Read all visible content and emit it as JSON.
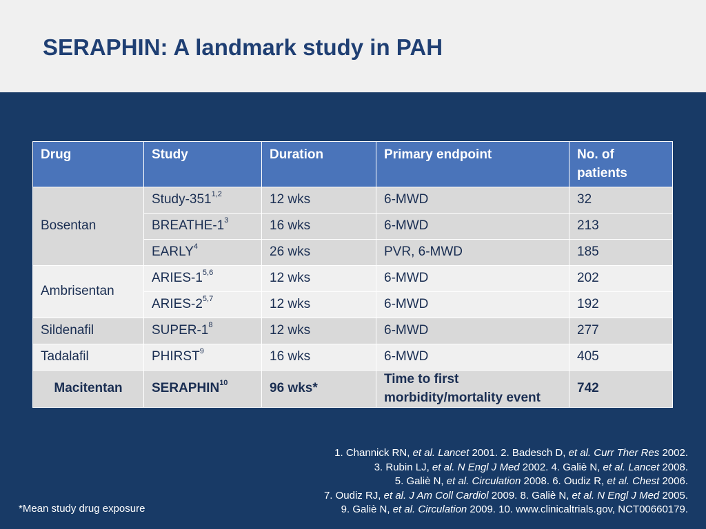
{
  "title": "SERAPHIN: A landmark study in PAH",
  "table": {
    "headers": [
      "Drug",
      "Study",
      "Duration",
      "Primary endpoint",
      "No. of patients"
    ],
    "groups": [
      {
        "drug": "Bosentan",
        "rows": [
          {
            "study": "Study-351",
            "refs": "1,2",
            "duration": "12 wks",
            "endpoint": "6-MWD",
            "patients": "32"
          },
          {
            "study": "BREATHE-1",
            "refs": "3",
            "duration": "16 wks",
            "endpoint": "6-MWD",
            "patients": "213"
          },
          {
            "study": "EARLY",
            "refs": "4",
            "duration": "26 wks",
            "endpoint": "PVR, 6-MWD",
            "patients": "185"
          }
        ]
      },
      {
        "drug": "Ambrisentan",
        "rows": [
          {
            "study": "ARIES-1",
            "refs": "5,6",
            "duration": "12 wks",
            "endpoint": "6-MWD",
            "patients": "202"
          },
          {
            "study": "ARIES-2",
            "refs": "5,7",
            "duration": "12 wks",
            "endpoint": "6-MWD",
            "patients": "192"
          }
        ]
      },
      {
        "drug": "Sildenafil",
        "rows": [
          {
            "study": "SUPER-1",
            "refs": "8",
            "duration": "12 wks",
            "endpoint": "6-MWD",
            "patients": "277"
          }
        ]
      },
      {
        "drug": "Tadalafil",
        "rows": [
          {
            "study": "PHIRST",
            "refs": "9",
            "duration": "16 wks",
            "endpoint": "6-MWD",
            "patients": "405"
          }
        ]
      },
      {
        "drug": "Macitentan",
        "rows": [
          {
            "study": "SERAPHIN",
            "refs": "10",
            "duration": "96 wks*",
            "endpoint": "Time to first morbidity/mortality event",
            "patients": "742"
          }
        ]
      }
    ]
  },
  "references": {
    "line1": {
      "a": "1. Channick RN, ",
      "b": "et al. Lancet",
      "c": " 2001. 2. Badesch  D, ",
      "d": "et al. Curr Ther Res",
      "e": " 2002."
    },
    "line2": {
      "a": "3. Rubin LJ, ",
      "b": "et al. N Engl J Med",
      "c": " 2002. 4. Galiè N, ",
      "d": "et al. Lancet",
      "e": " 2008."
    },
    "line3": {
      "a": "5. Galiè N, ",
      "b": "et al. Circulation",
      "c": " 2008. 6. Oudiz R, ",
      "d": "et al. Chest",
      "e": " 2006."
    },
    "line4": {
      "a": "7. Oudiz RJ, ",
      "b": "et al. J Am Coll Cardiol",
      "c": " 2009. 8. Galiè N, ",
      "d": "et al. N Engl J Med",
      "e": " 2005."
    },
    "line5": {
      "a": "9. Galiè N, ",
      "b": "et al. Circulation",
      "c": " 2009. 10. www.clinicaltrials.gov, NCT00660179.",
      "d": "",
      "e": ""
    }
  },
  "footnote": "*Mean study drug exposure",
  "colors": {
    "header_bg": "#f0f0f0",
    "title": "#1f3f73",
    "body_bg": "#183a66",
    "table_header": "#4a74ba",
    "row_dark": "#d9d9d9",
    "row_light": "#f0f0f0"
  }
}
